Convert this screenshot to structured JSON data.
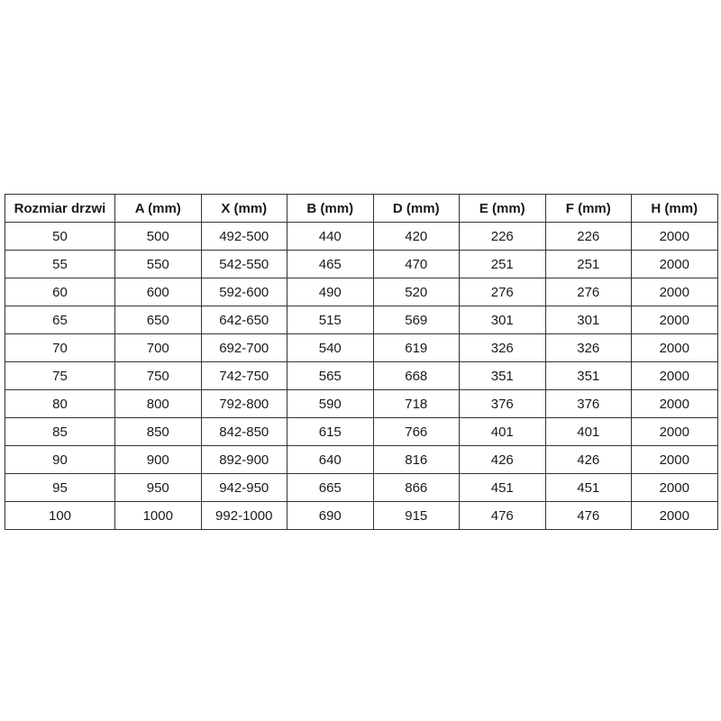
{
  "page": {
    "background_color": "#ffffff",
    "text_color": "#1a1a1a",
    "border_color": "#333333"
  },
  "table": {
    "columns": [
      "Rozmiar drzwi",
      "A (mm)",
      "X (mm)",
      "B (mm)",
      "D (mm)",
      "E (mm)",
      "F (mm)",
      "H (mm)"
    ],
    "rows": [
      [
        "50",
        "500",
        "492-500",
        "440",
        "420",
        "226",
        "226",
        "2000"
      ],
      [
        "55",
        "550",
        "542-550",
        "465",
        "470",
        "251",
        "251",
        "2000"
      ],
      [
        "60",
        "600",
        "592-600",
        "490",
        "520",
        "276",
        "276",
        "2000"
      ],
      [
        "65",
        "650",
        "642-650",
        "515",
        "569",
        "301",
        "301",
        "2000"
      ],
      [
        "70",
        "700",
        "692-700",
        "540",
        "619",
        "326",
        "326",
        "2000"
      ],
      [
        "75",
        "750",
        "742-750",
        "565",
        "668",
        "351",
        "351",
        "2000"
      ],
      [
        "80",
        "800",
        "792-800",
        "590",
        "718",
        "376",
        "376",
        "2000"
      ],
      [
        "85",
        "850",
        "842-850",
        "615",
        "766",
        "401",
        "401",
        "2000"
      ],
      [
        "90",
        "900",
        "892-900",
        "640",
        "816",
        "426",
        "426",
        "2000"
      ],
      [
        "95",
        "950",
        "942-950",
        "665",
        "866",
        "451",
        "451",
        "2000"
      ],
      [
        "100",
        "1000",
        "992-1000",
        "690",
        "915",
        "476",
        "476",
        "2000"
      ]
    ]
  }
}
